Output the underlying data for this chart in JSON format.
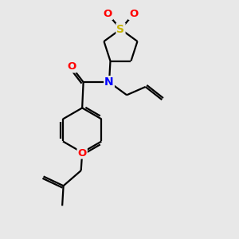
{
  "background_color": "#e8e8e8",
  "atom_colors": {
    "S": "#c8b400",
    "N": "#0000ff",
    "O": "#ff0000",
    "C": "#000000"
  },
  "bond_color": "#000000",
  "bond_width": 1.6,
  "figsize": [
    3.0,
    3.0
  ],
  "dpi": 100
}
